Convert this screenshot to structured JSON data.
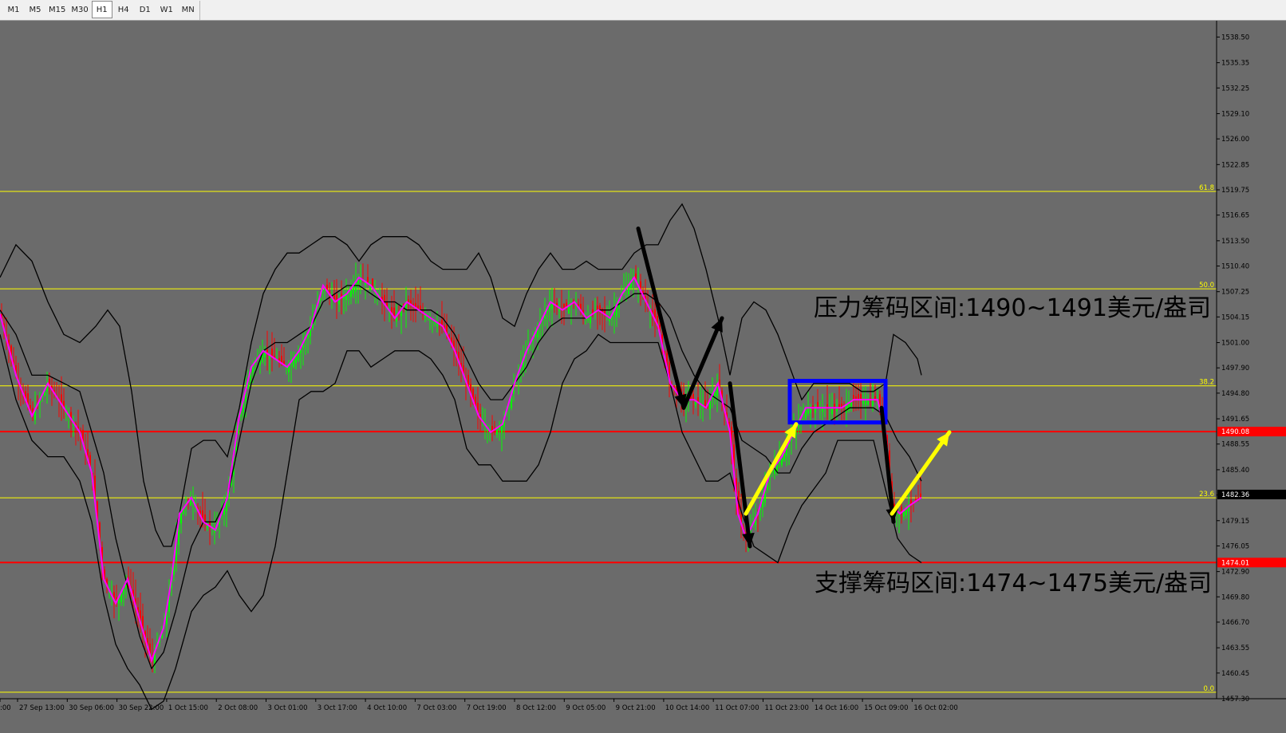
{
  "toolbar": {
    "timeframes": [
      "M1",
      "M5",
      "M15",
      "M30",
      "H1",
      "H4",
      "D1",
      "W1",
      "MN"
    ],
    "active": "H1"
  },
  "annotations": {
    "resistance": "压力筹码区间:1490~1491美元/盎司",
    "support": "支撑筹码区间:1474~1475美元/盎司"
  },
  "colors": {
    "background": "#6b6b6b",
    "up_candle": "#00ff00",
    "down_candle": "#ff0000",
    "moving_average": "#ff00ff",
    "bollinger": "#000000",
    "fib_line": "#ffff00",
    "level_line": "#ff0000",
    "range_box": "#0000ff",
    "yellow_arrow": "#ffff00",
    "black_arrow": "#000000"
  },
  "chart_data": {
    "type": "candlestick",
    "timeframe": "H1",
    "ylim": [
      1457.3,
      1540.5
    ],
    "price_axis": [
      "1538.50",
      "1535.35",
      "1532.25",
      "1529.10",
      "1526.00",
      "1522.85",
      "1519.75",
      "1516.65",
      "1513.50",
      "1510.40",
      "1507.25",
      "1504.15",
      "1501.00",
      "1497.90",
      "1494.80",
      "1491.65",
      "1488.55",
      "1485.40",
      "1482.30",
      "1479.15",
      "1476.05",
      "1472.90",
      "1469.80",
      "1466.70",
      "1463.55",
      "1460.45",
      "1457.30"
    ],
    "price_ticks": [
      1538.5,
      1535.35,
      1532.25,
      1529.1,
      1526.0,
      1522.85,
      1519.75,
      1516.65,
      1513.5,
      1510.4,
      1507.25,
      1504.15,
      1501.0,
      1497.9,
      1494.8,
      1491.65,
      1488.55,
      1485.4,
      1482.3,
      1479.15,
      1476.05,
      1472.9,
      1469.8,
      1466.7,
      1463.55,
      1460.45,
      1457.3
    ],
    "time_axis": [
      ":00",
      "27 Sep 13:00",
      "30 Sep 06:00",
      "30 Sep 22:00",
      "1 Oct 15:00",
      "2 Oct 08:00",
      "3 Oct 01:00",
      "3 Oct 17:00",
      "4 Oct 10:00",
      "7 Oct 03:00",
      "7 Oct 19:00",
      "8 Oct 12:00",
      "9 Oct 05:00",
      "9 Oct 21:00",
      "10 Oct 14:00",
      "11 Oct 07:00",
      "11 Oct 23:00",
      "14 Oct 16:00",
      "15 Oct 09:00",
      "16 Oct 02:00"
    ],
    "fib_levels": [
      {
        "label": "61.8",
        "price": 1519.55
      },
      {
        "label": "50.0",
        "price": 1507.6
      },
      {
        "label": "38.2",
        "price": 1495.7
      },
      {
        "label": "23.6",
        "price": 1481.95
      },
      {
        "label": "0.0",
        "price": 1458.1
      }
    ],
    "price_tags": [
      {
        "text": "1490.08",
        "price": 1490.08,
        "color": "#ff0000"
      },
      {
        "text": "1482.36",
        "price": 1482.36,
        "color": "#000000"
      },
      {
        "text": "1474.01",
        "price": 1474.01,
        "color": "#ff0000"
      }
    ],
    "horizontal_levels": [
      1490.08,
      1474.01
    ],
    "range_box": {
      "price_top": 1496.3,
      "price_bottom": 1491.2
    },
    "close_path": [
      [
        0,
        1504.5
      ],
      [
        20,
        1497
      ],
      [
        40,
        1492
      ],
      [
        60,
        1496
      ],
      [
        80,
        1493
      ],
      [
        100,
        1490
      ],
      [
        115,
        1485
      ],
      [
        130,
        1472
      ],
      [
        145,
        1469
      ],
      [
        160,
        1472
      ],
      [
        175,
        1467
      ],
      [
        190,
        1462
      ],
      [
        205,
        1466
      ],
      [
        215,
        1472
      ],
      [
        225,
        1480
      ],
      [
        240,
        1482
      ],
      [
        255,
        1479
      ],
      [
        270,
        1478
      ],
      [
        285,
        1482
      ],
      [
        300,
        1492
      ],
      [
        315,
        1498
      ],
      [
        330,
        1500
      ],
      [
        345,
        1499
      ],
      [
        360,
        1498
      ],
      [
        375,
        1500
      ],
      [
        390,
        1503
      ],
      [
        405,
        1508
      ],
      [
        420,
        1506
      ],
      [
        435,
        1507
      ],
      [
        450,
        1509
      ],
      [
        465,
        1508
      ],
      [
        480,
        1506
      ],
      [
        495,
        1504
      ],
      [
        510,
        1506
      ],
      [
        525,
        1505
      ],
      [
        540,
        1504
      ],
      [
        555,
        1503
      ],
      [
        570,
        1500
      ],
      [
        585,
        1496
      ],
      [
        600,
        1492
      ],
      [
        615,
        1490
      ],
      [
        630,
        1491
      ],
      [
        645,
        1496
      ],
      [
        660,
        1500
      ],
      [
        675,
        1503
      ],
      [
        690,
        1506
      ],
      [
        705,
        1505
      ],
      [
        720,
        1506
      ],
      [
        735,
        1504
      ],
      [
        750,
        1505
      ],
      [
        765,
        1504
      ],
      [
        780,
        1507
      ],
      [
        795,
        1509
      ],
      [
        810,
        1506
      ],
      [
        825,
        1503
      ],
      [
        840,
        1496
      ],
      [
        855,
        1494
      ],
      [
        870,
        1494
      ],
      [
        885,
        1493
      ],
      [
        900,
        1496
      ],
      [
        915,
        1490
      ],
      [
        925,
        1480
      ],
      [
        935,
        1477
      ],
      [
        950,
        1480
      ],
      [
        965,
        1485
      ],
      [
        980,
        1487
      ],
      [
        995,
        1490
      ],
      [
        1010,
        1493
      ],
      [
        1025,
        1493
      ],
      [
        1040,
        1493
      ],
      [
        1055,
        1493
      ],
      [
        1070,
        1494
      ],
      [
        1085,
        1494
      ],
      [
        1100,
        1494
      ],
      [
        1110,
        1490
      ],
      [
        1118,
        1481
      ],
      [
        1128,
        1480
      ],
      [
        1140,
        1481
      ],
      [
        1155,
        1482
      ]
    ],
    "bollinger_upper": [
      [
        0,
        1509
      ],
      [
        20,
        1513
      ],
      [
        40,
        1511
      ],
      [
        60,
        1506
      ],
      [
        80,
        1502
      ],
      [
        100,
        1501
      ],
      [
        120,
        1503
      ],
      [
        135,
        1505
      ],
      [
        150,
        1503
      ],
      [
        165,
        1495
      ],
      [
        180,
        1484
      ],
      [
        195,
        1478
      ],
      [
        205,
        1476
      ],
      [
        215,
        1476
      ],
      [
        225,
        1480
      ],
      [
        240,
        1488
      ],
      [
        255,
        1489
      ],
      [
        270,
        1489
      ],
      [
        285,
        1487
      ],
      [
        300,
        1493
      ],
      [
        315,
        1501
      ],
      [
        330,
        1507
      ],
      [
        345,
        1510
      ],
      [
        360,
        1512
      ],
      [
        375,
        1512
      ],
      [
        390,
        1513
      ],
      [
        405,
        1514
      ],
      [
        420,
        1514
      ],
      [
        435,
        1513
      ],
      [
        450,
        1511
      ],
      [
        465,
        1513
      ],
      [
        480,
        1514
      ],
      [
        495,
        1514
      ],
      [
        510,
        1514
      ],
      [
        525,
        1513
      ],
      [
        540,
        1511
      ],
      [
        555,
        1510
      ],
      [
        570,
        1510
      ],
      [
        585,
        1510
      ],
      [
        600,
        1512
      ],
      [
        615,
        1509
      ],
      [
        630,
        1504
      ],
      [
        645,
        1503
      ],
      [
        660,
        1507
      ],
      [
        675,
        1510
      ],
      [
        690,
        1512
      ],
      [
        705,
        1510
      ],
      [
        720,
        1510
      ],
      [
        735,
        1511
      ],
      [
        750,
        1510
      ],
      [
        765,
        1510
      ],
      [
        780,
        1510
      ],
      [
        795,
        1512
      ],
      [
        810,
        1513
      ],
      [
        825,
        1513
      ],
      [
        840,
        1516
      ],
      [
        855,
        1518
      ],
      [
        870,
        1515
      ],
      [
        885,
        1510
      ],
      [
        900,
        1504
      ],
      [
        915,
        1497
      ],
      [
        930,
        1504
      ],
      [
        945,
        1506
      ],
      [
        960,
        1505
      ],
      [
        975,
        1502
      ],
      [
        990,
        1498
      ],
      [
        1005,
        1494
      ],
      [
        1020,
        1496
      ],
      [
        1035,
        1496
      ],
      [
        1050,
        1496
      ],
      [
        1065,
        1496
      ],
      [
        1080,
        1495
      ],
      [
        1095,
        1495
      ],
      [
        1110,
        1496
      ],
      [
        1120,
        1502
      ],
      [
        1135,
        1501
      ],
      [
        1150,
        1499
      ],
      [
        1155,
        1497
      ]
    ],
    "bollinger_middle": [
      [
        0,
        1505
      ],
      [
        20,
        1502
      ],
      [
        40,
        1497
      ],
      [
        60,
        1497
      ],
      [
        80,
        1496
      ],
      [
        100,
        1495
      ],
      [
        115,
        1490
      ],
      [
        130,
        1485
      ],
      [
        145,
        1477
      ],
      [
        160,
        1471
      ],
      [
        175,
        1465
      ],
      [
        190,
        1461
      ],
      [
        205,
        1463
      ],
      [
        220,
        1468
      ],
      [
        240,
        1476
      ],
      [
        255,
        1479
      ],
      [
        270,
        1479
      ],
      [
        285,
        1482
      ],
      [
        300,
        1489
      ],
      [
        315,
        1496
      ],
      [
        330,
        1500
      ],
      [
        345,
        1501
      ],
      [
        360,
        1501
      ],
      [
        375,
        1502
      ],
      [
        390,
        1503
      ],
      [
        405,
        1506
      ],
      [
        420,
        1507
      ],
      [
        435,
        1508
      ],
      [
        450,
        1508
      ],
      [
        465,
        1507
      ],
      [
        480,
        1506
      ],
      [
        495,
        1506
      ],
      [
        510,
        1505
      ],
      [
        525,
        1505
      ],
      [
        540,
        1505
      ],
      [
        555,
        1504
      ],
      [
        570,
        1502
      ],
      [
        585,
        1499
      ],
      [
        600,
        1496
      ],
      [
        615,
        1494
      ],
      [
        630,
        1494
      ],
      [
        645,
        1496
      ],
      [
        660,
        1498
      ],
      [
        675,
        1501
      ],
      [
        690,
        1503
      ],
      [
        705,
        1504
      ],
      [
        720,
        1504
      ],
      [
        735,
        1504
      ],
      [
        750,
        1505
      ],
      [
        765,
        1505
      ],
      [
        780,
        1506
      ],
      [
        795,
        1507
      ],
      [
        810,
        1507
      ],
      [
        825,
        1506
      ],
      [
        840,
        1504
      ],
      [
        855,
        1500
      ],
      [
        870,
        1497
      ],
      [
        885,
        1495
      ],
      [
        900,
        1494
      ],
      [
        915,
        1493
      ],
      [
        930,
        1489
      ],
      [
        945,
        1488
      ],
      [
        960,
        1487
      ],
      [
        975,
        1485
      ],
      [
        990,
        1485
      ],
      [
        1005,
        1488
      ],
      [
        1020,
        1490
      ],
      [
        1035,
        1491
      ],
      [
        1050,
        1492
      ],
      [
        1065,
        1493
      ],
      [
        1080,
        1493
      ],
      [
        1095,
        1493
      ],
      [
        1110,
        1492
      ],
      [
        1125,
        1489
      ],
      [
        1140,
        1487
      ],
      [
        1155,
        1484
      ]
    ],
    "bollinger_lower": [
      [
        0,
        1502
      ],
      [
        20,
        1494
      ],
      [
        40,
        1489
      ],
      [
        60,
        1487
      ],
      [
        80,
        1487
      ],
      [
        100,
        1484
      ],
      [
        115,
        1479
      ],
      [
        130,
        1470
      ],
      [
        145,
        1464
      ],
      [
        160,
        1461
      ],
      [
        175,
        1459
      ],
      [
        190,
        1456
      ],
      [
        205,
        1457
      ],
      [
        220,
        1461
      ],
      [
        240,
        1468
      ],
      [
        255,
        1470
      ],
      [
        270,
        1471
      ],
      [
        285,
        1473
      ],
      [
        300,
        1470
      ],
      [
        315,
        1468
      ],
      [
        330,
        1470
      ],
      [
        345,
        1476
      ],
      [
        360,
        1485
      ],
      [
        375,
        1494
      ],
      [
        390,
        1495
      ],
      [
        405,
        1495
      ],
      [
        420,
        1496
      ],
      [
        435,
        1500
      ],
      [
        450,
        1500
      ],
      [
        465,
        1498
      ],
      [
        480,
        1499
      ],
      [
        495,
        1500
      ],
      [
        510,
        1500
      ],
      [
        525,
        1500
      ],
      [
        540,
        1499
      ],
      [
        555,
        1497
      ],
      [
        570,
        1494
      ],
      [
        585,
        1488
      ],
      [
        600,
        1486
      ],
      [
        615,
        1486
      ],
      [
        630,
        1484
      ],
      [
        645,
        1484
      ],
      [
        660,
        1484
      ],
      [
        675,
        1486
      ],
      [
        690,
        1490
      ],
      [
        705,
        1496
      ],
      [
        720,
        1499
      ],
      [
        735,
        1500
      ],
      [
        750,
        1502
      ],
      [
        765,
        1501
      ],
      [
        780,
        1501
      ],
      [
        795,
        1501
      ],
      [
        810,
        1501
      ],
      [
        825,
        1501
      ],
      [
        840,
        1496
      ],
      [
        855,
        1490
      ],
      [
        870,
        1487
      ],
      [
        885,
        1484
      ],
      [
        900,
        1484
      ],
      [
        915,
        1485
      ],
      [
        930,
        1480
      ],
      [
        945,
        1476
      ],
      [
        960,
        1475
      ],
      [
        975,
        1474
      ],
      [
        990,
        1478
      ],
      [
        1005,
        1481
      ],
      [
        1020,
        1483
      ],
      [
        1035,
        1485
      ],
      [
        1050,
        1489
      ],
      [
        1065,
        1489
      ],
      [
        1080,
        1489
      ],
      [
        1095,
        1489
      ],
      [
        1110,
        1483
      ],
      [
        1125,
        1477
      ],
      [
        1140,
        1475
      ],
      [
        1155,
        1474
      ]
    ],
    "black_arrows": [
      [
        [
          800,
          1515
        ],
        [
          857,
          1493
        ]
      ],
      [
        [
          857,
          1493
        ],
        [
          905,
          1504
        ]
      ],
      [
        [
          915,
          1496
        ],
        [
          940,
          1476
        ]
      ],
      [
        [
          1105,
          1493
        ],
        [
          1120,
          1479
        ]
      ]
    ],
    "yellow_arrows": [
      [
        [
          935,
          1480
        ],
        [
          998,
          1491
        ]
      ],
      [
        [
          1118,
          1480
        ],
        [
          1190,
          1490
        ]
      ]
    ]
  }
}
